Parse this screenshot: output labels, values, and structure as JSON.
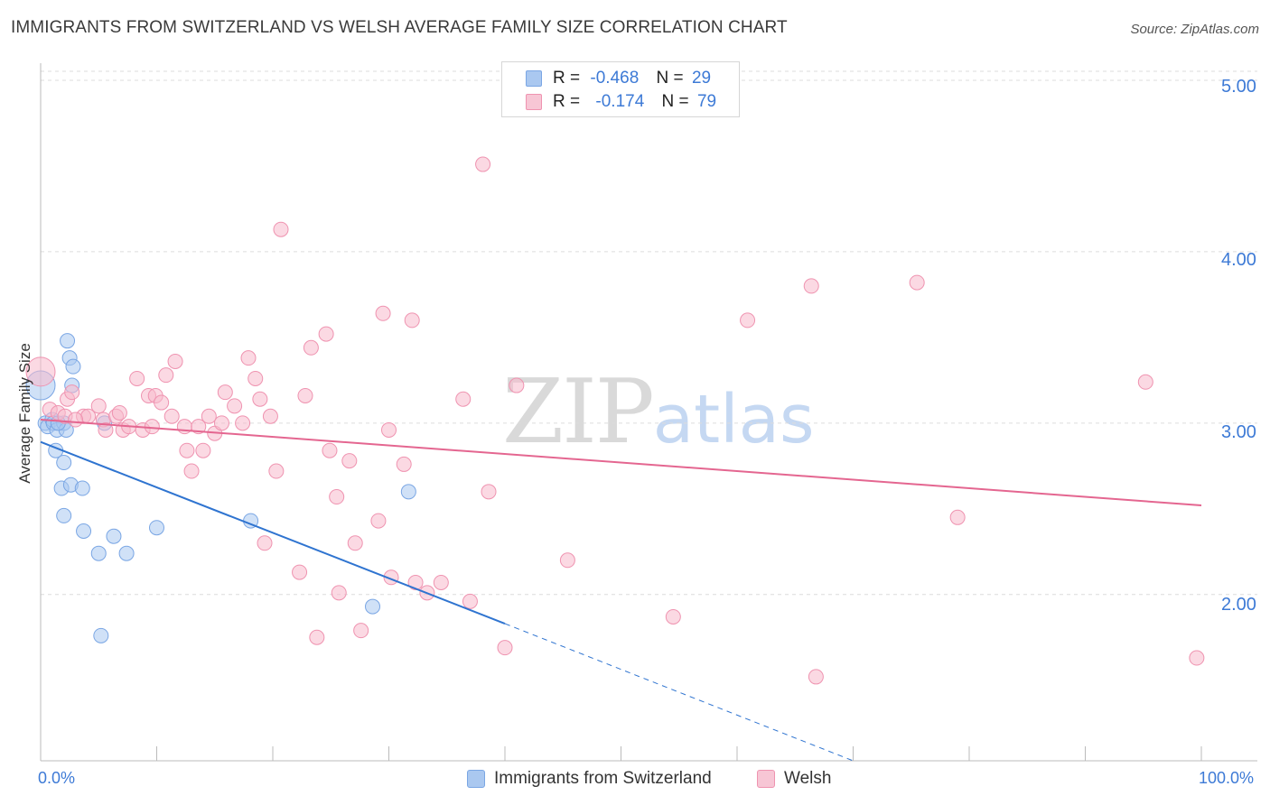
{
  "header": {
    "title": "IMMIGRANTS FROM SWITZERLAND VS WELSH AVERAGE FAMILY SIZE CORRELATION CHART",
    "source": "Source: ZipAtlas.com"
  },
  "watermark": {
    "zip": "ZIP",
    "atlas": "atlas"
  },
  "stats": {
    "rows": [
      {
        "r_label": "R =",
        "r_value": "-0.468",
        "n_label": "N =",
        "n_value": "29"
      },
      {
        "r_label": "R =",
        "r_value": "-0.174",
        "n_label": "N =",
        "n_value": "79"
      }
    ]
  },
  "legend": {
    "items": [
      {
        "label": "Immigrants from Switzerland"
      },
      {
        "label": "Welsh"
      }
    ]
  },
  "axes": {
    "ylabel": "Average Family Size",
    "x_tick_left": "0.0%",
    "x_tick_right": "100.0%",
    "y_ticks": [
      "5.00",
      "4.00",
      "3.00",
      "2.00"
    ]
  },
  "colors": {
    "blue_fill": "#aac8f0",
    "blue_stroke": "#7aa6e4",
    "blue_line": "#2f74d0",
    "pink_fill": "#f7b9cc",
    "pink_stroke": "#ef93b0",
    "pink_line": "#e46690",
    "tick_text": "#3d7ad6",
    "grid": "#dcdcdc"
  },
  "chart_data": {
    "type": "scatter",
    "xlabel": "",
    "ylabel": "Average Family Size",
    "xlim": [
      0,
      100
    ],
    "ylim": [
      1.03,
      5.1
    ],
    "y_ticks": [
      2.0,
      3.0,
      4.0,
      5.0
    ],
    "x_unit": "%",
    "grid": "horizontal dashed",
    "legend_position": "bottom-center",
    "series": [
      {
        "name": "Immigrants from Switzerland",
        "R": -0.468,
        "N": 29,
        "points": [
          [
            0.0,
            3.22,
            16
          ],
          [
            0.4,
            3.0,
            8
          ],
          [
            0.6,
            2.98,
            8
          ],
          [
            1.0,
            3.02,
            8
          ],
          [
            1.1,
            3.0,
            8
          ],
          [
            1.3,
            2.84,
            8
          ],
          [
            1.4,
            2.96,
            8
          ],
          [
            1.8,
            2.62,
            8
          ],
          [
            2.0,
            3.0,
            8
          ],
          [
            2.0,
            2.77,
            8
          ],
          [
            2.0,
            2.46,
            8
          ],
          [
            2.2,
            2.96,
            8
          ],
          [
            2.3,
            3.48,
            8
          ],
          [
            2.5,
            3.38,
            8
          ],
          [
            2.6,
            2.64,
            8
          ],
          [
            2.7,
            3.22,
            8
          ],
          [
            2.8,
            3.33,
            8
          ],
          [
            3.6,
            2.62,
            8
          ],
          [
            3.7,
            2.37,
            8
          ],
          [
            5.0,
            2.24,
            8
          ],
          [
            5.2,
            1.76,
            8
          ],
          [
            5.5,
            3.0,
            8
          ],
          [
            6.3,
            2.34,
            8
          ],
          [
            7.4,
            2.24,
            8
          ],
          [
            10.0,
            2.39,
            8
          ],
          [
            18.1,
            2.43,
            8
          ],
          [
            28.6,
            1.93,
            8
          ],
          [
            31.7,
            2.6,
            8
          ],
          [
            1.5,
            3.0,
            8
          ]
        ],
        "trend": {
          "x0": 0.0,
          "y0": 2.89,
          "x1": 40.0,
          "y1": 1.83,
          "dash_to_x": 70.0,
          "dash_to_y": 1.03
        }
      },
      {
        "name": "Welsh",
        "R": -0.174,
        "N": 79,
        "points": [
          [
            0.0,
            3.3,
            16
          ],
          [
            0.8,
            3.08,
            8
          ],
          [
            1.5,
            3.06,
            8
          ],
          [
            2.1,
            3.04,
            8
          ],
          [
            2.3,
            3.14,
            8
          ],
          [
            2.7,
            3.18,
            8
          ],
          [
            3.7,
            3.04,
            8
          ],
          [
            4.1,
            3.04,
            8
          ],
          [
            5.0,
            3.1,
            8
          ],
          [
            5.4,
            3.02,
            8
          ],
          [
            5.6,
            2.96,
            8
          ],
          [
            6.5,
            3.04,
            8
          ],
          [
            6.8,
            3.06,
            8
          ],
          [
            7.1,
            2.96,
            8
          ],
          [
            7.6,
            2.98,
            8
          ],
          [
            8.3,
            3.26,
            8
          ],
          [
            8.8,
            2.96,
            8
          ],
          [
            9.3,
            3.16,
            8
          ],
          [
            9.9,
            3.16,
            8
          ],
          [
            10.4,
            3.12,
            8
          ],
          [
            10.8,
            3.28,
            8
          ],
          [
            11.3,
            3.04,
            8
          ],
          [
            11.6,
            3.36,
            8
          ],
          [
            12.4,
            2.98,
            8
          ],
          [
            12.6,
            2.84,
            8
          ],
          [
            13.0,
            2.72,
            8
          ],
          [
            13.6,
            2.98,
            8
          ],
          [
            14.0,
            2.84,
            8
          ],
          [
            14.5,
            3.04,
            8
          ],
          [
            15.0,
            2.94,
            8
          ],
          [
            15.6,
            3.0,
            8
          ],
          [
            15.9,
            3.18,
            8
          ],
          [
            16.7,
            3.1,
            8
          ],
          [
            17.4,
            3.0,
            8
          ],
          [
            17.9,
            3.38,
            8
          ],
          [
            18.5,
            3.26,
            8
          ],
          [
            18.9,
            3.14,
            8
          ],
          [
            19.3,
            2.3,
            8
          ],
          [
            19.8,
            3.04,
            8
          ],
          [
            20.3,
            2.72,
            8
          ],
          [
            20.7,
            4.13,
            8
          ],
          [
            22.3,
            2.13,
            8
          ],
          [
            22.8,
            3.16,
            8
          ],
          [
            23.3,
            3.44,
            8
          ],
          [
            23.8,
            1.75,
            8
          ],
          [
            24.6,
            3.52,
            8
          ],
          [
            24.9,
            2.84,
            8
          ],
          [
            25.5,
            2.57,
            8
          ],
          [
            25.7,
            2.01,
            8
          ],
          [
            26.6,
            2.78,
            8
          ],
          [
            27.1,
            2.3,
            8
          ],
          [
            27.6,
            1.79,
            8
          ],
          [
            29.1,
            2.43,
            8
          ],
          [
            29.5,
            3.64,
            8
          ],
          [
            30.0,
            2.96,
            8
          ],
          [
            30.2,
            2.1,
            8
          ],
          [
            31.3,
            2.76,
            8
          ],
          [
            32.0,
            3.6,
            8
          ],
          [
            32.3,
            2.07,
            8
          ],
          [
            33.3,
            2.01,
            8
          ],
          [
            34.5,
            2.07,
            8
          ],
          [
            36.4,
            3.14,
            8
          ],
          [
            37.0,
            1.96,
            8
          ],
          [
            38.1,
            4.51,
            8
          ],
          [
            38.6,
            2.6,
            8
          ],
          [
            40.0,
            1.69,
            8
          ],
          [
            41.0,
            3.22,
            8
          ],
          [
            45.4,
            2.2,
            8
          ],
          [
            47.4,
            5.0,
            8
          ],
          [
            54.5,
            1.87,
            8
          ],
          [
            60.9,
            3.6,
            8
          ],
          [
            66.4,
            3.8,
            8
          ],
          [
            66.8,
            1.52,
            8
          ],
          [
            75.5,
            3.82,
            8
          ],
          [
            79.0,
            2.45,
            8
          ],
          [
            95.2,
            3.24,
            8
          ],
          [
            99.6,
            1.63,
            8
          ],
          [
            3.0,
            3.02,
            8
          ],
          [
            9.6,
            2.98,
            8
          ]
        ],
        "trend": {
          "x0": 0.0,
          "y0": 3.02,
          "x1": 100.0,
          "y1": 2.52
        }
      }
    ]
  }
}
